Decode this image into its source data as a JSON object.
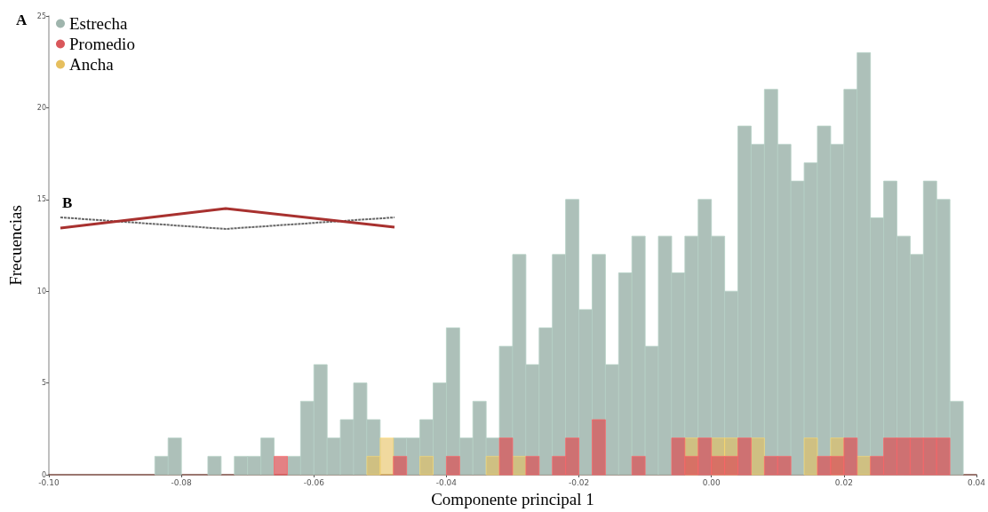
{
  "chart_data": {
    "type": "histogram",
    "xlabel": "Componente principal 1",
    "ylabel": "Frecuencias",
    "annotations": [
      "A",
      "B"
    ],
    "bins": [
      -0.084,
      -0.082,
      -0.08,
      -0.078,
      -0.076,
      -0.074,
      -0.072,
      -0.07,
      -0.068,
      -0.066,
      -0.064,
      -0.062,
      -0.06,
      -0.058,
      -0.056,
      -0.054,
      -0.052,
      -0.05,
      -0.048,
      -0.046,
      -0.044,
      -0.042,
      -0.04,
      -0.038,
      -0.036,
      -0.034,
      -0.032,
      -0.03,
      -0.028,
      -0.026,
      -0.024,
      -0.022,
      -0.02,
      -0.018,
      -0.016,
      -0.014,
      -0.012,
      -0.01,
      -0.008,
      -0.006,
      -0.004,
      -0.002,
      0,
      0.002,
      0.004,
      0.006,
      0.008,
      0.01,
      0.012,
      0.014,
      0.016,
      0.018,
      0.02,
      0.022,
      0.024,
      0.026,
      0.028,
      0.03,
      0.032,
      0.034,
      0.036,
      0.038
    ],
    "series": [
      {
        "name": "Estrecha",
        "color": "#9fb5ad",
        "values": [
          1,
          2,
          0,
          0,
          1,
          0,
          1,
          1,
          2,
          0,
          1,
          4,
          6,
          2,
          3,
          5,
          3,
          0,
          2,
          2,
          3,
          5,
          8,
          2,
          4,
          2,
          7,
          12,
          6,
          8,
          12,
          15,
          9,
          12,
          6,
          11,
          13,
          7,
          13,
          11,
          13,
          15,
          13,
          10,
          19,
          18,
          21,
          18,
          16,
          17,
          19,
          18,
          21,
          23,
          14,
          16,
          13,
          12,
          16,
          15,
          4
        ]
      },
      {
        "name": "Promedio",
        "color": "#d9575b",
        "values": [
          0,
          0,
          0,
          0,
          0,
          0,
          0,
          0,
          0,
          1,
          0,
          0,
          0,
          0,
          0,
          0,
          0,
          0,
          1,
          0,
          0,
          0,
          1,
          0,
          0,
          0,
          2,
          0,
          1,
          0,
          1,
          2,
          0,
          3,
          0,
          0,
          1,
          0,
          0,
          2,
          1,
          2,
          1,
          1,
          2,
          0,
          1,
          1,
          0,
          0,
          1,
          1,
          2,
          0,
          1,
          2,
          2,
          2,
          2,
          2,
          0
        ]
      },
      {
        "name": "Ancha",
        "color": "#e6bf5e",
        "values": [
          0,
          0,
          0,
          0,
          0,
          0,
          0,
          0,
          0,
          0,
          0,
          0,
          0,
          0,
          0,
          0,
          1,
          2,
          0,
          0,
          1,
          0,
          0,
          0,
          0,
          1,
          0,
          1,
          0,
          0,
          0,
          null,
          0,
          0,
          0,
          0,
          0,
          0,
          0,
          0,
          2,
          0,
          2,
          2,
          0,
          2,
          0,
          0,
          0,
          2,
          0,
          2,
          0,
          1,
          0,
          0,
          0,
          0,
          0,
          0,
          0
        ]
      }
    ],
    "xlim": [
      -0.1,
      0.04
    ],
    "xticks": [
      {
        "value": -0.1,
        "label": "-0.10"
      },
      {
        "value": -0.08,
        "label": "-0.08"
      },
      {
        "value": -0.06,
        "label": "-0.06"
      },
      {
        "value": -0.04,
        "label": "-0.04"
      },
      {
        "value": -0.02,
        "label": "-0.02"
      },
      {
        "value": 0,
        "label": "0.00"
      },
      {
        "value": 0.02,
        "label": "0.02"
      },
      {
        "value": 0.04,
        "label": "0.04"
      }
    ],
    "ylim": [
      0,
      25
    ],
    "yticks": [
      0,
      5,
      10,
      15,
      20,
      25
    ],
    "grid": false,
    "legend": "top left"
  }
}
